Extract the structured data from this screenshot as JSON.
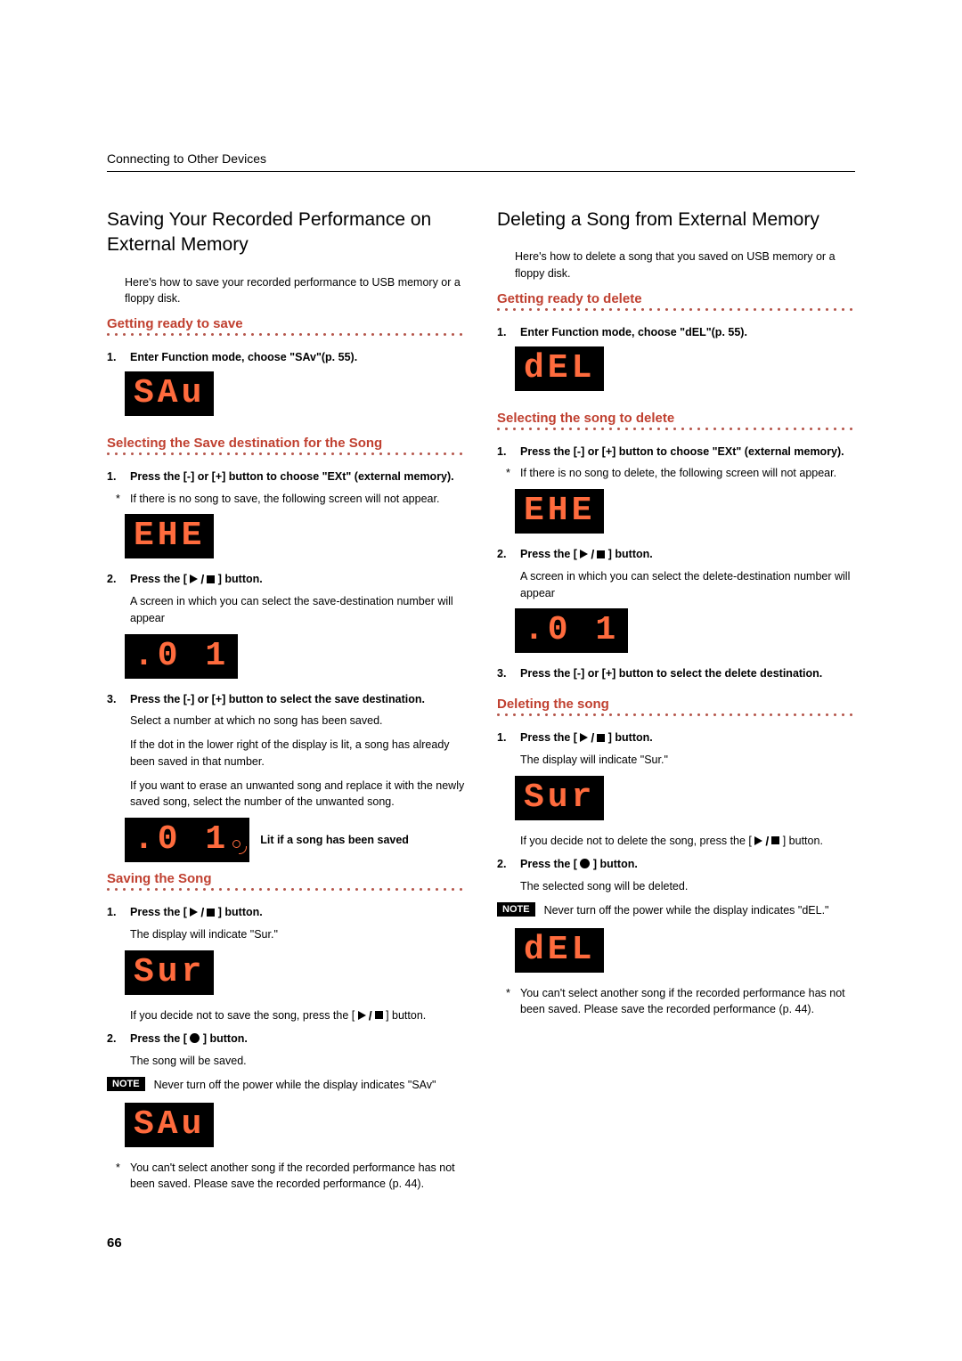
{
  "header": "Connecting to Other Devices",
  "pageNumber": "66",
  "noteBadge": "NOTE",
  "left": {
    "title": "Saving Your Recorded Performance on External Memory",
    "intro": "Here's how to save your recorded performance to USB memory or a floppy disk.",
    "h1": "Getting ready to save",
    "s1": "Enter Function mode, choose \"SAv\"(p. 55).",
    "lcd1": "SAu",
    "h2": "Selecting the Save destination for the Song",
    "s2": "Press the [-] or [+] button to choose \"EXt\" (external memory).",
    "ast1": "If there is no song to save, the following screen will not appear.",
    "lcd2": "EHE",
    "s3a": "Press the [ ",
    "s3b": " ] button.",
    "s3body": "A screen in which you can select the save-destination number will appear",
    "lcd3": ".0 1",
    "s4": "Press the [-] or [+] button to select the save destination.",
    "s4b1": "Select a number at which no song has been saved.",
    "s4b2": "If the dot in the lower right of the display is lit, a song has already been saved in that number.",
    "s4b3": "If you want to erase an unwanted song and replace it with the newly saved song, select the number of the unwanted song.",
    "lcd4": ".0 1",
    "lcd4cap": "Lit if a song has been saved",
    "h3": "Saving the Song",
    "s5a": "Press the [ ",
    "s5b": " ] button.",
    "s5body": "The display will indicate \"Sur.\"",
    "lcd5": "Sur",
    "s5after_a": "If you decide not to save the song, press the [ ",
    "s5after_b": " ] button.",
    "s6a": "Press the [ ",
    "s6b": " ] button.",
    "s6body": "The song will be saved.",
    "note": "Never turn off the power while the display indicates \"SAv\"",
    "lcd6": "SAu",
    "ast2": "You can't select another song if the recorded performance has not been saved. Please save the recorded performance (p. 44)."
  },
  "right": {
    "title": "Deleting a Song from External Memory",
    "intro": "Here's how to delete a song that you saved on USB memory or a floppy disk.",
    "h1": "Getting ready to delete",
    "s1": "Enter Function mode, choose \"dEL\"(p. 55).",
    "lcd1": "dEL",
    "h2": "Selecting the song to delete",
    "s2": "Press the [-] or [+] button to choose \"EXt\" (external memory).",
    "ast1": "If there is no song to delete, the following screen will not appear.",
    "lcd2": "EHE",
    "s3a": "Press the [ ",
    "s3b": " ] button.",
    "s3body": "A screen in which you can select the delete-destination number will appear",
    "lcd3": ".0 1",
    "s4": "Press the [-] or [+] button to select the delete destination.",
    "h3": "Deleting the song",
    "s5a": "Press the [ ",
    "s5b": " ] button.",
    "s5body": "The display will indicate \"Sur.\"",
    "lcd5": "Sur",
    "s5after_a": "If you decide not to delete the song, press the [ ",
    "s5after_b": " ] button.",
    "s6a": "Press the [ ",
    "s6b": " ] button.",
    "s6body": "The selected song will be deleted.",
    "note": "Never turn off the power while the display indicates \"dEL.\"",
    "lcd6": "dEL",
    "ast2": "You can't select another song if the recorded performance has not been saved. Please save the recorded performance (p. 44)."
  }
}
